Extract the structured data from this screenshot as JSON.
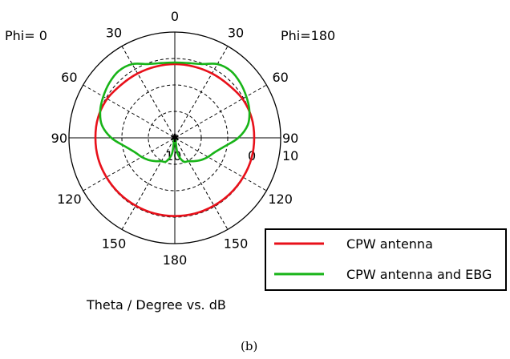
{
  "chart_data": {
    "type": "polar",
    "left_label": "Phi=  0",
    "right_label": "Phi=180",
    "xlabel": "Theta / Degree vs. dB",
    "caption": "(b)",
    "angle_ticks": [
      "0",
      "30",
      "60",
      "90",
      "120",
      "150",
      "180",
      "150",
      "120",
      "90",
      "60",
      "30"
    ],
    "radial_ticks": [
      "10",
      "0"
    ],
    "rlim": [
      -30,
      10
    ],
    "grid": true,
    "legend_position": "bottom-right",
    "series": [
      {
        "name": "CPW antenna",
        "color": "#e8101a",
        "theta": [
          0,
          15,
          30,
          45,
          60,
          75,
          90,
          105,
          120,
          135,
          150,
          165,
          180
        ],
        "r": [
          -2.1,
          -2.1,
          -1.9,
          -1.5,
          -0.5,
          0.0,
          0.0,
          0.0,
          -0.2,
          -0.3,
          -0.4,
          -0.4,
          -0.4
        ]
      },
      {
        "name": "CPW antenna and EBG",
        "color": "#18b418",
        "theta": [
          0,
          10,
          20,
          30,
          40,
          50,
          60,
          70,
          80,
          90,
          100,
          110,
          120,
          130,
          140,
          150,
          160,
          170,
          180
        ],
        "r": [
          -1.5,
          -1.3,
          -0.3,
          2.2,
          3.0,
          2.3,
          1.2,
          0.0,
          -2.0,
          -6.0,
          -11.0,
          -14.0,
          -15.5,
          -17.0,
          -18.5,
          -19.8,
          -20.5,
          -24.0,
          -30.0
        ]
      }
    ]
  }
}
